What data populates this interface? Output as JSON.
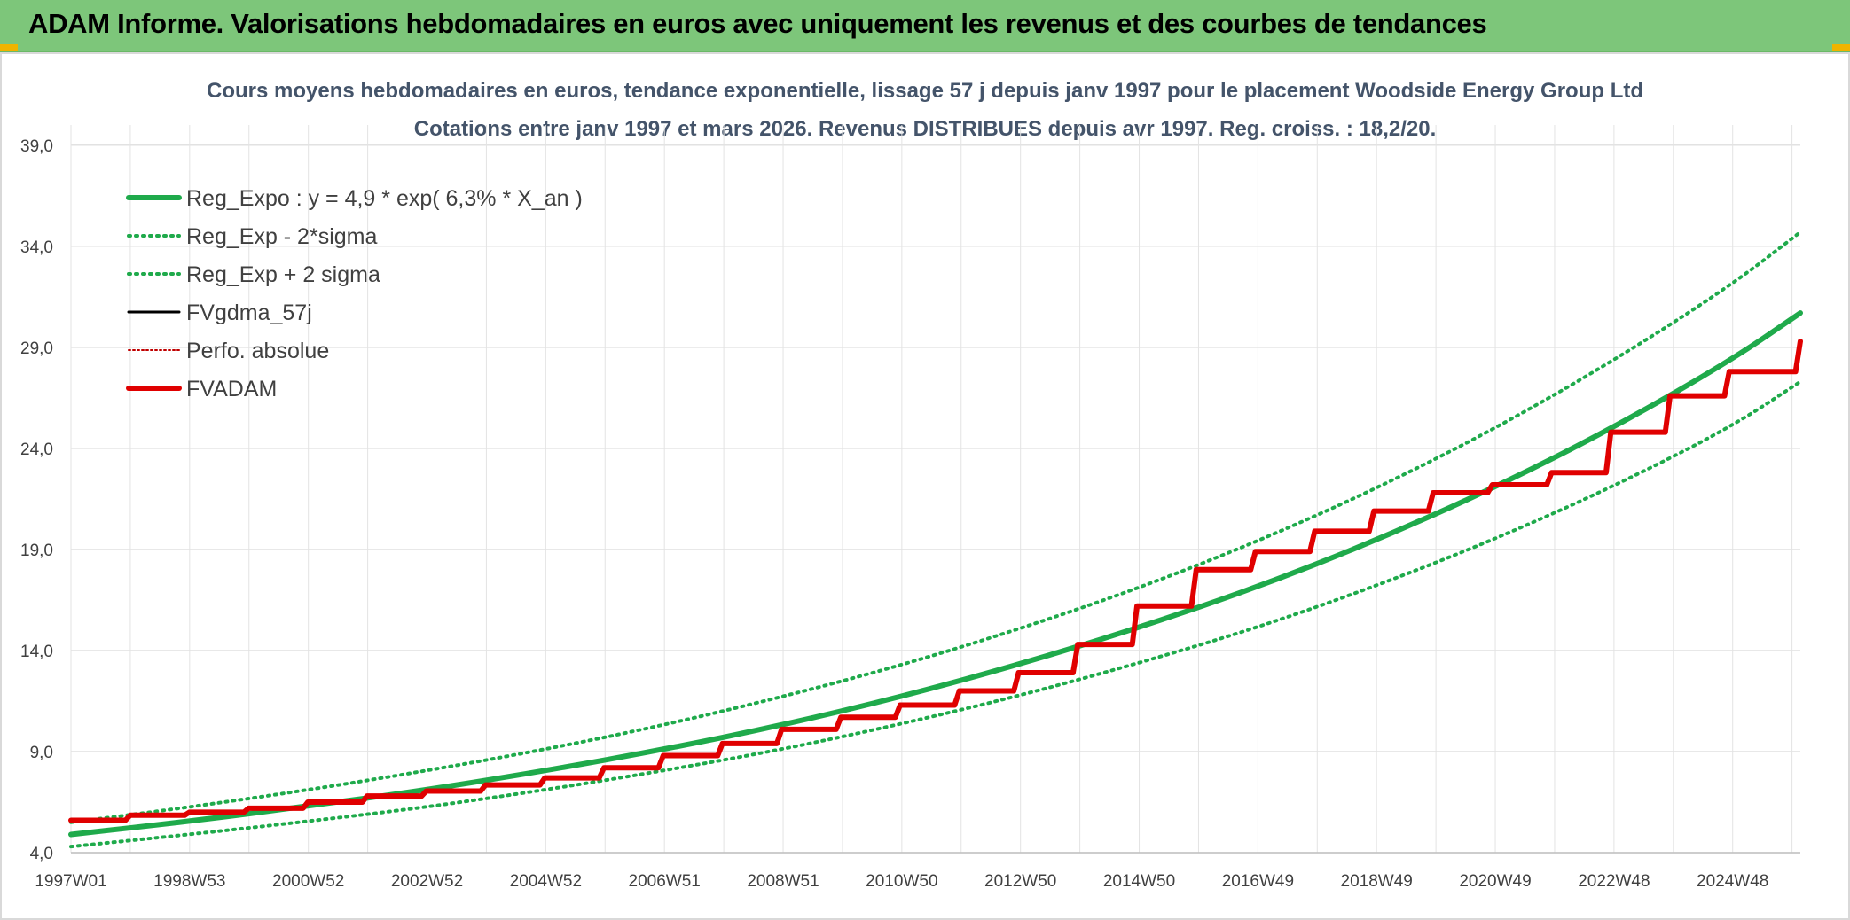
{
  "header": {
    "title": "ADAM Informe. Valorisations hebdomadaires en euros avec uniquement les revenus et des courbes de tendances"
  },
  "chart_data": {
    "type": "line",
    "title": "Cours moyens hebdomadaires en euros, tendance exponentielle, lissage 57 j depuis janv 1997 pour le placement Woodside Energy Group Ltd",
    "subtitle": "Cotations entre janv 1997 et mars 2026. Revenus DISTRIBUES depuis avr 1997. Reg. croiss. : 18,2/20.",
    "ylim": [
      4,
      40
    ],
    "y_ticks": [
      "4,0",
      "9,0",
      "14,0",
      "19,0",
      "24,0",
      "29,0",
      "34,0",
      "39,0"
    ],
    "x_ticks": [
      "1997W01",
      "1998W53",
      "2000W52",
      "2002W52",
      "2004W52",
      "2006W51",
      "2008W51",
      "2010W50",
      "2012W50",
      "2014W50",
      "2016W49",
      "2018W49",
      "2020W49",
      "2022W48",
      "2024W48"
    ],
    "grid": true,
    "legend_position": "top-left",
    "colors": {
      "reg": "#1faa4b",
      "band": "#1faa4b",
      "fvgdma": "#000000",
      "perfo": "#c00000",
      "fvadam": "#e00000"
    },
    "series": [
      {
        "name": "Reg_Expo : y = 4,9 * exp( 6,3% *  X_an )",
        "style": "solid-thick",
        "x": [
          1997.0,
          1999.0,
          2001.0,
          2003.0,
          2005.0,
          2007.0,
          2009.0,
          2011.0,
          2013.0,
          2015.0,
          2017.0,
          2019.0,
          2021.0,
          2023.0,
          2025.0,
          2026.2
        ],
        "y": [
          4.9,
          5.55,
          6.3,
          7.1,
          8.05,
          9.1,
          10.3,
          11.7,
          13.3,
          15.1,
          17.1,
          19.4,
          22.0,
          24.95,
          28.3,
          30.7
        ]
      },
      {
        "name": "Reg_Exp - 2*sigma",
        "style": "dotted",
        "x": [
          1997.0,
          1999.0,
          2001.0,
          2003.0,
          2005.0,
          2007.0,
          2009.0,
          2011.0,
          2013.0,
          2015.0,
          2017.0,
          2019.0,
          2021.0,
          2023.0,
          2025.0,
          2026.2
        ],
        "y": [
          4.3,
          4.9,
          5.55,
          6.25,
          7.1,
          8.05,
          9.1,
          10.35,
          11.75,
          13.35,
          15.1,
          17.15,
          19.45,
          22.05,
          25.0,
          27.3
        ]
      },
      {
        "name": "Reg_Exp + 2 sigma",
        "style": "dotted",
        "x": [
          1997.0,
          1999.0,
          2001.0,
          2003.0,
          2005.0,
          2007.0,
          2009.0,
          2011.0,
          2013.0,
          2015.0,
          2017.0,
          2019.0,
          2021.0,
          2023.0,
          2025.0,
          2026.2
        ],
        "y": [
          5.5,
          6.25,
          7.1,
          8.05,
          9.1,
          10.3,
          11.7,
          13.25,
          15.05,
          17.05,
          19.35,
          21.95,
          24.9,
          28.25,
          32.0,
          34.7
        ]
      },
      {
        "name": "FVgdma_57j",
        "style": "solid",
        "x": [
          1997.0,
          1998.0,
          1999.0,
          2000.0,
          2001.0,
          2002.0,
          2003.0,
          2004.0,
          2005.0,
          2006.0,
          2007.0,
          2008.0,
          2009.0,
          2010.0,
          2011.0,
          2012.0,
          2013.0,
          2014.0,
          2015.0,
          2016.0,
          2017.0,
          2018.0,
          2019.0,
          2020.0,
          2021.0,
          2022.0,
          2023.0,
          2024.0,
          2025.0,
          2026.2
        ],
        "y": [
          5.6,
          5.85,
          6.0,
          6.2,
          6.5,
          6.8,
          7.05,
          7.35,
          7.7,
          8.2,
          8.8,
          9.4,
          10.1,
          10.7,
          11.3,
          12.0,
          12.9,
          14.3,
          16.2,
          18.0,
          18.9,
          19.9,
          20.9,
          21.8,
          22.2,
          22.8,
          24.8,
          26.6,
          27.8,
          29.3
        ]
      },
      {
        "name": "Perfo. absolue",
        "style": "dotted-thin",
        "x": [
          1997.0,
          1998.0,
          1999.0,
          2000.0,
          2001.0,
          2002.0,
          2003.0,
          2004.0,
          2005.0,
          2006.0,
          2007.0,
          2008.0,
          2009.0,
          2010.0,
          2011.0,
          2012.0,
          2013.0,
          2014.0,
          2015.0,
          2016.0,
          2017.0,
          2018.0,
          2019.0,
          2020.0,
          2021.0,
          2022.0,
          2023.0,
          2024.0,
          2025.0,
          2026.2
        ],
        "y": [
          5.6,
          5.85,
          6.0,
          6.2,
          6.5,
          6.8,
          7.05,
          7.35,
          7.7,
          8.2,
          8.8,
          9.4,
          10.1,
          10.7,
          11.3,
          12.0,
          12.9,
          14.3,
          16.2,
          18.0,
          18.9,
          19.9,
          20.9,
          21.8,
          22.2,
          22.8,
          24.8,
          26.6,
          27.8,
          29.3
        ]
      },
      {
        "name": "FVADAM",
        "style": "solid-thick",
        "x": [
          1997.0,
          1998.0,
          1999.0,
          2000.0,
          2001.0,
          2002.0,
          2003.0,
          2004.0,
          2005.0,
          2006.0,
          2007.0,
          2008.0,
          2009.0,
          2010.0,
          2011.0,
          2012.0,
          2013.0,
          2014.0,
          2015.0,
          2016.0,
          2017.0,
          2018.0,
          2019.0,
          2020.0,
          2021.0,
          2022.0,
          2023.0,
          2024.0,
          2025.0,
          2026.2
        ],
        "y": [
          5.6,
          5.85,
          6.0,
          6.2,
          6.5,
          6.8,
          7.05,
          7.35,
          7.7,
          8.2,
          8.8,
          9.4,
          10.1,
          10.7,
          11.3,
          12.0,
          12.9,
          14.3,
          16.2,
          18.0,
          18.9,
          19.9,
          20.9,
          21.8,
          22.2,
          22.8,
          24.8,
          26.6,
          27.8,
          29.3
        ]
      }
    ]
  }
}
